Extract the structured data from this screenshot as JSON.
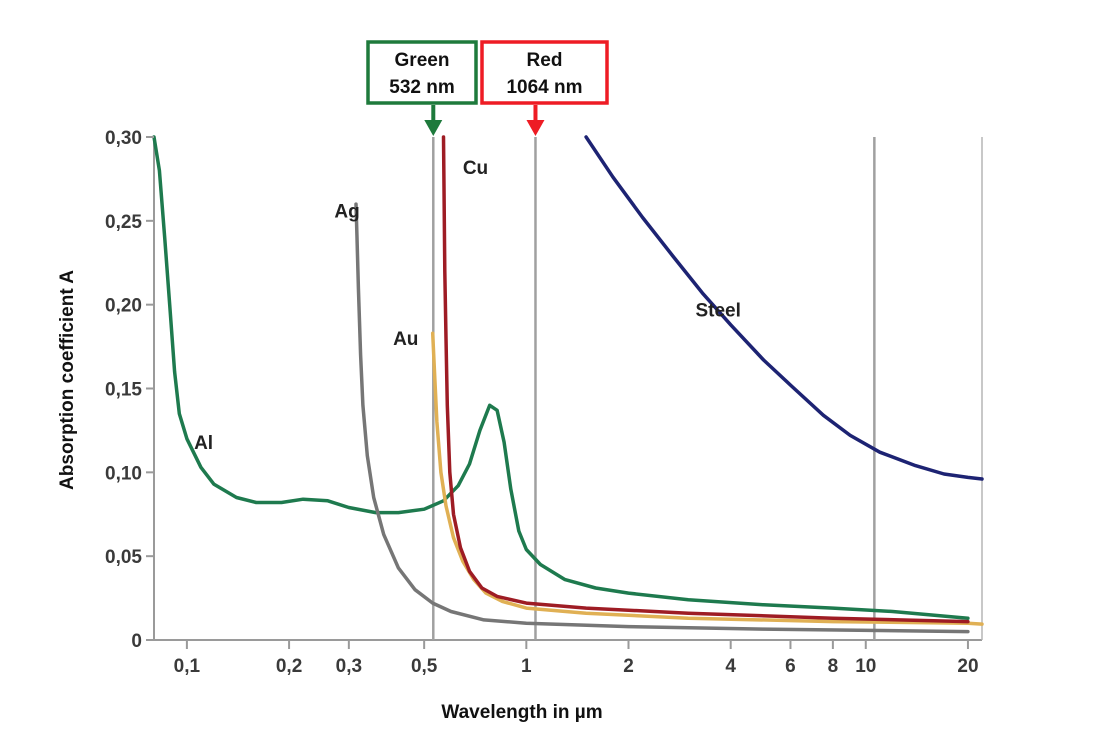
{
  "chart_data": {
    "type": "line",
    "title": "",
    "xlabel": "Wavelength in µm",
    "ylabel": "Absorption coefficient A",
    "x_scale": "log",
    "xlim": [
      0.08,
      22
    ],
    "ylim": [
      0,
      0.3
    ],
    "x_ticks": [
      {
        "value": 0.1,
        "label": "0,1"
      },
      {
        "value": 0.2,
        "label": "0,2"
      },
      {
        "value": 0.3,
        "label": "0,3"
      },
      {
        "value": 0.5,
        "label": "0,5"
      },
      {
        "value": 1,
        "label": "1"
      },
      {
        "value": 2,
        "label": "2"
      },
      {
        "value": 4,
        "label": "4"
      },
      {
        "value": 6,
        "label": "6"
      },
      {
        "value": 8,
        "label": "8"
      },
      {
        "value": 10,
        "label": "10"
      },
      {
        "value": 20,
        "label": "20"
      }
    ],
    "y_ticks": [
      {
        "value": 0,
        "label": "0"
      },
      {
        "value": 0.05,
        "label": "0,05"
      },
      {
        "value": 0.1,
        "label": "0,10"
      },
      {
        "value": 0.15,
        "label": "0,15"
      },
      {
        "value": 0.2,
        "label": "0,20"
      },
      {
        "value": 0.25,
        "label": "0,25"
      },
      {
        "value": 0.3,
        "label": "0,30"
      }
    ],
    "reference_lines": [
      {
        "x": 0.532,
        "color": "#a0a0a0"
      },
      {
        "x": 1.064,
        "color": "#a0a0a0"
      },
      {
        "x": 10.6,
        "color": "#a0a0a0"
      }
    ],
    "series": [
      {
        "name": "Al",
        "color": "#1e7a4e",
        "points": [
          [
            0.08,
            0.3
          ],
          [
            0.083,
            0.28
          ],
          [
            0.086,
            0.24
          ],
          [
            0.089,
            0.2
          ],
          [
            0.092,
            0.16
          ],
          [
            0.095,
            0.135
          ],
          [
            0.1,
            0.12
          ],
          [
            0.11,
            0.103
          ],
          [
            0.12,
            0.093
          ],
          [
            0.14,
            0.085
          ],
          [
            0.16,
            0.082
          ],
          [
            0.19,
            0.082
          ],
          [
            0.22,
            0.084
          ],
          [
            0.26,
            0.083
          ],
          [
            0.3,
            0.079
          ],
          [
            0.36,
            0.076
          ],
          [
            0.42,
            0.076
          ],
          [
            0.5,
            0.078
          ],
          [
            0.57,
            0.083
          ],
          [
            0.63,
            0.092
          ],
          [
            0.68,
            0.105
          ],
          [
            0.73,
            0.125
          ],
          [
            0.78,
            0.14
          ],
          [
            0.82,
            0.137
          ],
          [
            0.86,
            0.118
          ],
          [
            0.9,
            0.09
          ],
          [
            0.95,
            0.065
          ],
          [
            1.0,
            0.054
          ],
          [
            1.1,
            0.045
          ],
          [
            1.3,
            0.036
          ],
          [
            1.6,
            0.031
          ],
          [
            2.0,
            0.028
          ],
          [
            3.0,
            0.024
          ],
          [
            5.0,
            0.021
          ],
          [
            8.0,
            0.019
          ],
          [
            12,
            0.017
          ],
          [
            20,
            0.013
          ]
        ]
      },
      {
        "name": "Ag",
        "color": "#767676",
        "points": [
          [
            0.315,
            0.26
          ],
          [
            0.317,
            0.24
          ],
          [
            0.32,
            0.21
          ],
          [
            0.325,
            0.17
          ],
          [
            0.33,
            0.14
          ],
          [
            0.34,
            0.11
          ],
          [
            0.355,
            0.085
          ],
          [
            0.38,
            0.063
          ],
          [
            0.42,
            0.043
          ],
          [
            0.47,
            0.03
          ],
          [
            0.53,
            0.022
          ],
          [
            0.6,
            0.017
          ],
          [
            0.75,
            0.012
          ],
          [
            1.0,
            0.01
          ],
          [
            2.0,
            0.008
          ],
          [
            5.0,
            0.0065
          ],
          [
            20,
            0.005
          ]
        ]
      },
      {
        "name": "Au",
        "color": "#e0b054",
        "points": [
          [
            0.53,
            0.183
          ],
          [
            0.535,
            0.165
          ],
          [
            0.545,
            0.13
          ],
          [
            0.56,
            0.1
          ],
          [
            0.58,
            0.08
          ],
          [
            0.61,
            0.061
          ],
          [
            0.65,
            0.047
          ],
          [
            0.7,
            0.036
          ],
          [
            0.76,
            0.028
          ],
          [
            0.85,
            0.023
          ],
          [
            1.0,
            0.019
          ],
          [
            1.5,
            0.016
          ],
          [
            3.0,
            0.013
          ],
          [
            8.0,
            0.011
          ],
          [
            20,
            0.01
          ],
          [
            22,
            0.0095
          ]
        ]
      },
      {
        "name": "Cu",
        "color": "#9e1c24",
        "points": [
          [
            0.57,
            0.3
          ],
          [
            0.572,
            0.27
          ],
          [
            0.575,
            0.22
          ],
          [
            0.58,
            0.18
          ],
          [
            0.585,
            0.14
          ],
          [
            0.595,
            0.1
          ],
          [
            0.61,
            0.075
          ],
          [
            0.64,
            0.055
          ],
          [
            0.68,
            0.041
          ],
          [
            0.74,
            0.031
          ],
          [
            0.82,
            0.026
          ],
          [
            1.0,
            0.022
          ],
          [
            1.5,
            0.019
          ],
          [
            3.0,
            0.016
          ],
          [
            8.0,
            0.013
          ],
          [
            20,
            0.011
          ]
        ]
      },
      {
        "name": "Steel",
        "color": "#1d2373",
        "points": [
          [
            1.5,
            0.3
          ],
          [
            1.8,
            0.276
          ],
          [
            2.2,
            0.252
          ],
          [
            2.7,
            0.229
          ],
          [
            3.3,
            0.207
          ],
          [
            4.0,
            0.188
          ],
          [
            5.0,
            0.167
          ],
          [
            6.0,
            0.152
          ],
          [
            7.5,
            0.134
          ],
          [
            9.0,
            0.122
          ],
          [
            11,
            0.112
          ],
          [
            14,
            0.104
          ],
          [
            17,
            0.099
          ],
          [
            20,
            0.097
          ],
          [
            22,
            0.096
          ]
        ]
      }
    ],
    "annotations": [
      {
        "label": "Al",
        "x": 0.105,
        "y": 0.114
      },
      {
        "label": "Ag",
        "x": 0.272,
        "y": 0.252
      },
      {
        "label": "Au",
        "x": 0.405,
        "y": 0.176
      },
      {
        "label": "Cu",
        "x": 0.65,
        "y": 0.278
      },
      {
        "label": "Steel",
        "x": 3.15,
        "y": 0.193
      }
    ],
    "markers": [
      {
        "line1": "Green",
        "line2": "532 nm",
        "x": 0.532,
        "color": "#1e7a3c"
      },
      {
        "line1": "Red",
        "line2": "1064 nm",
        "x": 1.064,
        "color": "#ee1c24"
      }
    ]
  }
}
